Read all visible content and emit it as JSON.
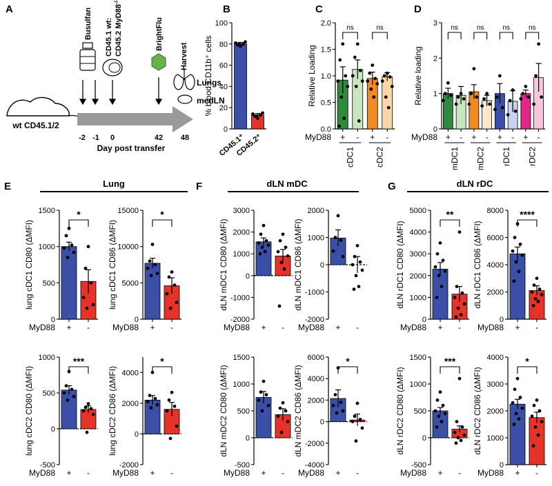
{
  "figure": {
    "colors": {
      "blue": "#3b4fa6",
      "red": "#e5332a",
      "green": "#2e8b3e",
      "light_green": "#c8e6c0",
      "orange": "#f08a24",
      "light_orange": "#fad7a8",
      "light_blue": "#c7d3ee",
      "pink": "#e4258a",
      "light_pink": "#f6c6de",
      "cream": "#fbe6c8",
      "arrow_gray": "#9a9a9a",
      "brightflu_green": "#6ab04c"
    }
  },
  "panel_a": {
    "letter": "A",
    "mouse_label": "wt CD45.1/2",
    "busulfan": "Busulfan",
    "cells_line1": "CD45.1 wt:",
    "cells_line2": "CD45.2 MyD88",
    "cells_sup": "-/-",
    "brightflu": "BrightFlu",
    "harvest": "Harvest",
    "lungs": "Lungs",
    "medln": "medLN",
    "days": [
      "-2",
      "-1",
      "0",
      "42",
      "48"
    ],
    "axis_label": "Day post transfer"
  },
  "group_titles": {
    "e": "Lung",
    "f": "dLN mDC",
    "g": "dLN rDC"
  },
  "chart_data": [
    {
      "id": "B",
      "letter": "B",
      "type": "bar",
      "ylabel": "% blood CD11b⁺ cells",
      "ylim": [
        0,
        100
      ],
      "yticks": [
        0,
        20,
        40,
        60,
        80,
        100
      ],
      "categories": [
        "CD45.1⁺",
        "CD45.2⁺"
      ],
      "colors": [
        "#3b4fa6",
        "#e5332a"
      ],
      "values": [
        80,
        13
      ],
      "errors": [
        1.5,
        1.5
      ],
      "points": [
        [
          78,
          79,
          80,
          81,
          82,
          80
        ],
        [
          10,
          12,
          13,
          14,
          15,
          12
        ]
      ]
    },
    {
      "id": "C",
      "letter": "C",
      "type": "bar",
      "ylabel": "Relative Loading",
      "ylim": [
        0,
        2
      ],
      "yticks": [
        "0.0",
        "0.5",
        "1.0",
        "1.5",
        "2.0"
      ],
      "xlabel_prefix": "MyD88",
      "signs": [
        "+",
        "-",
        "+",
        "-"
      ],
      "groups": [
        "cDC1",
        "cDC2"
      ],
      "sig": [
        "ns",
        "ns"
      ],
      "colors": [
        "#2e8b3e",
        "#c8e6c0",
        "#f08a24",
        "#fad7a8"
      ],
      "values": [
        0.92,
        1.12,
        0.95,
        0.98
      ],
      "errors": [
        0.25,
        0.18,
        0.12,
        0.08
      ],
      "points": [
        [
          1.6,
          1.3,
          1.0,
          0.9,
          0.8,
          0.6,
          0.2,
          0.05
        ],
        [
          1.6,
          1.35,
          1.1,
          1.0,
          0.9,
          0.8,
          0.15
        ],
        [
          1.2,
          1.05,
          0.95,
          0.9,
          0.85,
          0.75,
          0.6
        ],
        [
          1.05,
          1.0,
          0.98,
          0.9,
          0.8,
          0.6,
          0.4
        ]
      ]
    },
    {
      "id": "D",
      "letter": "D",
      "type": "bar",
      "ylabel": "Relative loading",
      "ylim": [
        0,
        3
      ],
      "yticks": [
        0,
        1,
        2,
        3
      ],
      "xlabel_prefix": "MyD88",
      "signs": [
        "+",
        "-",
        "+",
        "-",
        "+",
        "-",
        "+",
        "-"
      ],
      "groups": [
        "mDC1",
        "mDC2",
        "rDC1",
        "rDC2"
      ],
      "sig": [
        "ns",
        "ns",
        "ns",
        "ns"
      ],
      "colors": [
        "#2e8b3e",
        "#c8e6c0",
        "#f08a24",
        "#fbe6c8",
        "#3b4fa6",
        "#c7d3ee",
        "#e4258a",
        "#f6c6de"
      ],
      "values": [
        1.0,
        0.95,
        1.05,
        0.8,
        1.0,
        0.78,
        1.0,
        1.45
      ],
      "errors": [
        0.15,
        0.25,
        0.2,
        0.15,
        0.28,
        0.3,
        0.1,
        0.4
      ],
      "points": [
        [
          1.3,
          1.0,
          0.95,
          0.8
        ],
        [
          1.0,
          0.9,
          0.85,
          0.7
        ],
        [
          1.7,
          1.0,
          0.9,
          0.7
        ],
        [
          1.0,
          0.85,
          0.7,
          0.65
        ],
        [
          1.5,
          0.9,
          0.6,
          0.55
        ],
        [
          1.1,
          0.8,
          0.5,
          0.4
        ],
        [
          1.2,
          1.0,
          0.9,
          0.85
        ],
        [
          2.4,
          1.5,
          0.9,
          0.7
        ]
      ]
    },
    {
      "id": "E1",
      "letter": "E",
      "type": "bar",
      "ylabel": "lung cDC1 CD80 (ΔMFI)",
      "ylim": [
        0,
        1500
      ],
      "yticks": [
        0,
        500,
        1000,
        1500
      ],
      "xlabel_prefix": "MyD88",
      "signs": [
        "+",
        "-"
      ],
      "colors": [
        "#3b4fa6",
        "#e5332a"
      ],
      "values": [
        1000,
        520
      ],
      "errors": [
        60,
        160
      ],
      "points": [
        [
          1250,
          1150,
          1020,
          980,
          920,
          850
        ],
        [
          1000,
          700,
          500,
          300,
          200,
          150
        ]
      ],
      "sig": "*"
    },
    {
      "id": "E2",
      "type": "bar",
      "ylabel": "lung cDC1 CD86 (ΔMFI)",
      "ylim": [
        0,
        15000
      ],
      "yticks": [
        0,
        5000,
        10000,
        15000
      ],
      "xlabel_prefix": "MyD88",
      "signs": [
        "+",
        "-"
      ],
      "colors": [
        "#3b4fa6",
        "#e5332a"
      ],
      "values": [
        7700,
        4600
      ],
      "errors": [
        700,
        1100
      ],
      "points": [
        [
          10300,
          8000,
          7500,
          7000,
          6300,
          6000
        ],
        [
          6500,
          5800,
          4700,
          3500,
          2300,
          1500
        ]
      ],
      "sig": "*"
    },
    {
      "id": "F1",
      "letter": "F",
      "type": "bar",
      "ylabel": "dLN mDC1 CD80 (ΔMFI)",
      "ylim": [
        -2000,
        3000
      ],
      "yticks": [
        -2000,
        -1000,
        0,
        1000,
        2000,
        3000
      ],
      "xlabel_prefix": "MyD88",
      "signs": [
        "+",
        "-"
      ],
      "colors": [
        "#3b4fa6",
        "#e5332a"
      ],
      "values": [
        1550,
        900
      ],
      "errors": [
        180,
        300
      ],
      "points": [
        [
          2300,
          1900,
          1600,
          1500,
          1400,
          1300,
          1100,
          1000
        ],
        [
          1900,
          1600,
          1300,
          1100,
          900,
          600,
          300,
          -1400
        ]
      ]
    },
    {
      "id": "F2",
      "type": "bar",
      "ylabel": "dLN mDC1 CD86 (ΔMFI)",
      "ylim": [
        -2000,
        2000
      ],
      "yticks": [
        -2000,
        -1000,
        0,
        1000,
        2000
      ],
      "xlabel_prefix": "MyD88",
      "signs": [
        "+",
        "-"
      ],
      "colors": [
        "#3b4fa6",
        "#e5332a"
      ],
      "values": [
        980,
        0
      ],
      "errors": [
        300,
        300
      ],
      "points": [
        [
          1800,
          1000,
          900,
          500,
          300
        ],
        [
          700,
          300,
          100,
          0,
          -200,
          -400,
          -800,
          -900
        ]
      ]
    },
    {
      "id": "G1",
      "letter": "G",
      "type": "bar",
      "ylabel": "dLN rDC1 CD80 (ΔMFI)",
      "ylim": [
        0,
        5000
      ],
      "yticks": [
        0,
        1000,
        2000,
        3000,
        4000,
        5000
      ],
      "xlabel_prefix": "MyD88",
      "signs": [
        "+",
        "-"
      ],
      "colors": [
        "#3b4fa6",
        "#e5332a"
      ],
      "values": [
        2300,
        1150
      ],
      "errors": [
        300,
        350
      ],
      "points": [
        [
          3500,
          3000,
          2700,
          2400,
          2200,
          2000,
          1500,
          1000
        ],
        [
          4000,
          1500,
          1200,
          1000,
          700,
          500,
          200,
          100
        ]
      ],
      "sig": "**"
    },
    {
      "id": "G2",
      "type": "bar",
      "ylabel": "dLN rDC1 CD86 (ΔMFI)",
      "ylim": [
        0,
        8000
      ],
      "yticks": [
        0,
        2000,
        4000,
        6000,
        8000
      ],
      "xlabel_prefix": "MyD88",
      "signs": [
        "+",
        "-"
      ],
      "colors": [
        "#3b4fa6",
        "#e5332a"
      ],
      "values": [
        4800,
        2100
      ],
      "errors": [
        500,
        350
      ],
      "points": [
        [
          7000,
          6000,
          5500,
          5000,
          4700,
          4200,
          3500,
          2800
        ],
        [
          3000,
          2500,
          2200,
          2000,
          1800,
          1500,
          1300,
          1000
        ]
      ],
      "sig": "****"
    },
    {
      "id": "E3",
      "type": "bar",
      "ylabel": "lung cDC2 CD80 (ΔMFI)",
      "ylim": [
        -500,
        1000
      ],
      "yticks": [
        -500,
        0,
        500,
        1000
      ],
      "xlabel_prefix": "MyD88",
      "signs": [
        "+",
        "-"
      ],
      "colors": [
        "#3b4fa6",
        "#e5332a"
      ],
      "values": [
        540,
        270
      ],
      "errors": [
        60,
        50
      ],
      "points": [
        [
          800,
          600,
          550,
          500,
          450,
          400
        ],
        [
          350,
          300,
          280,
          250,
          200,
          -50
        ]
      ],
      "sig": "***"
    },
    {
      "id": "E4",
      "type": "bar",
      "ylabel": "lung cDC2 CD86 (ΔMFI)",
      "ylim": [
        -2000,
        5000
      ],
      "yticks": [
        -2000,
        0,
        2000,
        4000
      ],
      "xlabel_prefix": "MyD88",
      "signs": [
        "+",
        "-"
      ],
      "colors": [
        "#3b4fa6",
        "#e5332a"
      ],
      "values": [
        2200,
        1600
      ],
      "errors": [
        300,
        450
      ],
      "points": [
        [
          4000,
          2500,
          2300,
          2100,
          1900,
          1700
        ],
        [
          2700,
          2200,
          1800,
          1500,
          500,
          -300
        ]
      ],
      "sig": "*"
    },
    {
      "id": "F3",
      "type": "bar",
      "ylabel": "dLN mDC2 CD80 (ΔMFI)",
      "ylim": [
        -500,
        1500
      ],
      "yticks": [
        -500,
        0,
        500,
        1000,
        1500
      ],
      "xlabel_prefix": "MyD88",
      "signs": [
        "+",
        "-"
      ],
      "colors": [
        "#3b4fa6",
        "#e5332a"
      ],
      "values": [
        750,
        430
      ],
      "errors": [
        110,
        110
      ],
      "points": [
        [
          1050,
          850,
          800,
          700,
          600,
          500
        ],
        [
          650,
          550,
          500,
          400,
          300,
          100
        ]
      ]
    },
    {
      "id": "F4",
      "type": "bar",
      "ylabel": "dLN mDC2 CD86 (ΔMFI)",
      "ylim": [
        -4000,
        6000
      ],
      "yticks": [
        -4000,
        -2000,
        0,
        2000,
        4000,
        6000
      ],
      "xlabel_prefix": "MyD88",
      "signs": [
        "+",
        "-"
      ],
      "colors": [
        "#3b4fa6",
        "#e5332a"
      ],
      "values": [
        2150,
        150
      ],
      "errors": [
        800,
        550
      ],
      "points": [
        [
          5000,
          2500,
          1800,
          1500,
          1000,
          800
        ],
        [
          1700,
          500,
          200,
          0,
          -600,
          -1800
        ]
      ],
      "sig": "*"
    },
    {
      "id": "G3",
      "type": "bar",
      "ylabel": "dLN rDC2 CD80 (ΔMFI)",
      "ylim": [
        -500,
        1500
      ],
      "yticks": [
        -500,
        0,
        500,
        1000,
        1500
      ],
      "xlabel_prefix": "MyD88",
      "signs": [
        "+",
        "-"
      ],
      "colors": [
        "#3b4fa6",
        "#e5332a"
      ],
      "values": [
        500,
        160
      ],
      "errors": [
        60,
        60
      ],
      "points": [
        [
          850,
          700,
          600,
          500,
          450,
          400,
          300,
          200
        ],
        [
          1100,
          300,
          200,
          100,
          50,
          0,
          -50,
          -100
        ]
      ],
      "sig": "***"
    },
    {
      "id": "G4",
      "type": "bar",
      "ylabel": "dLN rDC2 CD86 (ΔMFI)",
      "ylim": [
        0,
        4000
      ],
      "yticks": [
        0,
        1000,
        2000,
        3000,
        4000
      ],
      "xlabel_prefix": "MyD88",
      "signs": [
        "+",
        "-"
      ],
      "colors": [
        "#3b4fa6",
        "#e5332a"
      ],
      "values": [
        2250,
        1750
      ],
      "errors": [
        180,
        200
      ],
      "points": [
        [
          3200,
          2800,
          2500,
          2300,
          2100,
          1900,
          1700,
          1500
        ],
        [
          2400,
          2200,
          2000,
          1800,
          1600,
          1400,
          1100,
          700
        ]
      ],
      "sig": "*"
    }
  ]
}
